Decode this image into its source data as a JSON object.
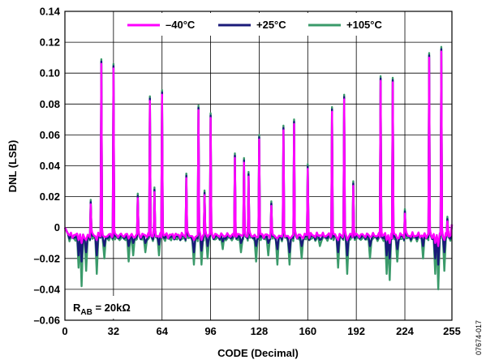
{
  "chart_data": {
    "type": "line",
    "xlabel": "CODE (Decimal)",
    "ylabel": "DNL (LSB)",
    "xlim": [
      0,
      255
    ],
    "ylim": [
      -0.06,
      0.14
    ],
    "x_ticks": [
      0,
      32,
      64,
      96,
      128,
      160,
      192,
      224,
      255
    ],
    "y_ticks": [
      -0.06,
      -0.04,
      -0.02,
      0,
      0.02,
      0.04,
      0.06,
      0.08,
      0.1,
      0.12,
      0.14
    ],
    "y_tick_labels": [
      "–0.06",
      "–0.04",
      "–0.02",
      "0",
      "0.02",
      "0.04",
      "0.06",
      "0.08",
      "0.10",
      "0.12",
      "0.14"
    ],
    "grid": true,
    "legend_position": "top-center",
    "annotation": {
      "main": "R",
      "sub": "AB",
      "rest": " = 20kΩ"
    },
    "figure_id": "07674-017",
    "baseline": {
      "-40": -0.005,
      "25": -0.006,
      "105": -0.007
    },
    "series": [
      {
        "name": "–40°C",
        "color": "#ff00ff"
      },
      {
        "name": "+25°C",
        "color": "#1a1a7a"
      },
      {
        "name": "+105°C",
        "color": "#3a9a6a"
      }
    ],
    "peaks": [
      {
        "x": 17,
        "y": 0.015
      },
      {
        "x": 24,
        "y": 0.106
      },
      {
        "x": 32,
        "y": 0.103
      },
      {
        "x": 48,
        "y": 0.019
      },
      {
        "x": 56,
        "y": 0.082
      },
      {
        "x": 59,
        "y": 0.023
      },
      {
        "x": 64,
        "y": 0.086
      },
      {
        "x": 80,
        "y": 0.032
      },
      {
        "x": 88,
        "y": 0.076
      },
      {
        "x": 92,
        "y": 0.021
      },
      {
        "x": 96,
        "y": 0.071
      },
      {
        "x": 112,
        "y": 0.045
      },
      {
        "x": 118,
        "y": 0.042
      },
      {
        "x": 121,
        "y": 0.033
      },
      {
        "x": 128,
        "y": 0.057
      },
      {
        "x": 136,
        "y": 0.014
      },
      {
        "x": 144,
        "y": 0.063
      },
      {
        "x": 151,
        "y": 0.067
      },
      {
        "x": 160,
        "y": 0.038
      },
      {
        "x": 176,
        "y": 0.075
      },
      {
        "x": 184,
        "y": 0.083
      },
      {
        "x": 190,
        "y": 0.027
      },
      {
        "x": 208,
        "y": 0.095
      },
      {
        "x": 216,
        "y": 0.094
      },
      {
        "x": 224,
        "y": 0.009
      },
      {
        "x": 240,
        "y": 0.11
      },
      {
        "x": 248,
        "y": 0.114
      },
      {
        "x": 252,
        "y": 0.004
      }
    ],
    "dips": [
      {
        "x": 9,
        "d": [
          -0.008,
          -0.018,
          -0.026
        ]
      },
      {
        "x": 11,
        "d": [
          -0.01,
          -0.022,
          -0.038
        ]
      },
      {
        "x": 14,
        "d": [
          -0.008,
          -0.016,
          -0.028
        ]
      },
      {
        "x": 21,
        "d": [
          -0.008,
          -0.018,
          -0.03
        ]
      },
      {
        "x": 26,
        "d": [
          -0.006,
          -0.012,
          -0.02
        ]
      },
      {
        "x": 42,
        "d": [
          -0.007,
          -0.012,
          -0.022
        ]
      },
      {
        "x": 45,
        "d": [
          -0.006,
          -0.01,
          -0.018
        ]
      },
      {
        "x": 53,
        "d": [
          -0.005,
          -0.01,
          -0.016
        ]
      },
      {
        "x": 62,
        "d": [
          -0.006,
          -0.011,
          -0.018
        ]
      },
      {
        "x": 85,
        "d": [
          -0.008,
          -0.016,
          -0.024
        ]
      },
      {
        "x": 90,
        "d": [
          -0.008,
          -0.015,
          -0.024
        ]
      },
      {
        "x": 94,
        "d": [
          -0.006,
          -0.012,
          -0.02
        ]
      },
      {
        "x": 104,
        "d": [
          -0.005,
          -0.009,
          -0.014
        ]
      },
      {
        "x": 116,
        "d": [
          -0.005,
          -0.01,
          -0.016
        ]
      },
      {
        "x": 126,
        "d": [
          -0.006,
          -0.012,
          -0.022
        ]
      },
      {
        "x": 134,
        "d": [
          -0.005,
          -0.01,
          -0.018
        ]
      },
      {
        "x": 140,
        "d": [
          -0.007,
          -0.014,
          -0.024
        ]
      },
      {
        "x": 148,
        "d": [
          -0.007,
          -0.016,
          -0.024
        ]
      },
      {
        "x": 156,
        "d": [
          -0.006,
          -0.012,
          -0.02
        ]
      },
      {
        "x": 168,
        "d": [
          -0.005,
          -0.008,
          -0.012
        ]
      },
      {
        "x": 180,
        "d": [
          -0.008,
          -0.016,
          -0.026
        ]
      },
      {
        "x": 186,
        "d": [
          -0.008,
          -0.018,
          -0.03
        ]
      },
      {
        "x": 201,
        "d": [
          -0.006,
          -0.012,
          -0.02
        ]
      },
      {
        "x": 212,
        "d": [
          -0.008,
          -0.018,
          -0.03
        ]
      },
      {
        "x": 214,
        "d": [
          -0.01,
          -0.02,
          -0.034
        ]
      },
      {
        "x": 219,
        "d": [
          -0.007,
          -0.014,
          -0.022
        ]
      },
      {
        "x": 236,
        "d": [
          -0.006,
          -0.012,
          -0.02
        ]
      },
      {
        "x": 244,
        "d": [
          -0.01,
          -0.02,
          -0.03
        ]
      },
      {
        "x": 246,
        "d": [
          -0.012,
          -0.024,
          -0.04
        ]
      },
      {
        "x": 250,
        "d": [
          -0.008,
          -0.016,
          -0.028
        ]
      }
    ]
  }
}
